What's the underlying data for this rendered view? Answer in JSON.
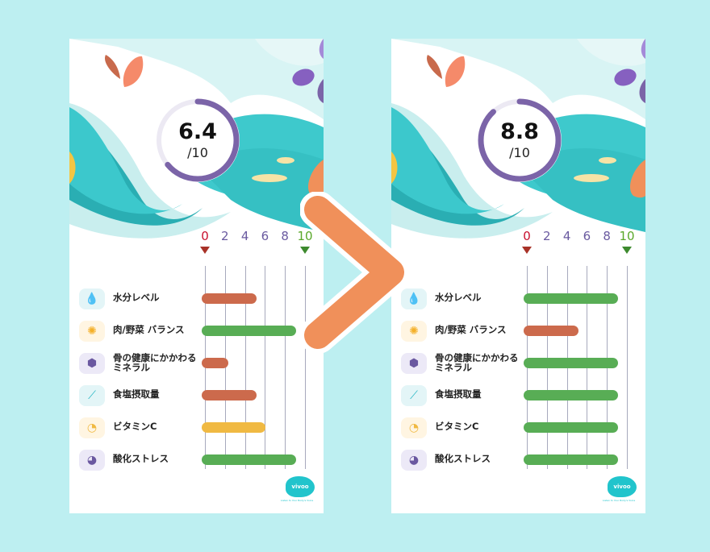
{
  "axis": {
    "ticks": [
      "0",
      "2",
      "4",
      "6",
      "8",
      "10"
    ],
    "min_color": "#c8102e",
    "max_color": "#5aa82a"
  },
  "colors": {
    "bad": "#cc6a4c",
    "good": "#58ad55",
    "medium": "#f0b942",
    "ring": "#7b64a8",
    "accent_arrow": "#f0905a"
  },
  "categories": [
    {
      "label": "水分レベル",
      "icon": "water-drop-icon"
    },
    {
      "label": "肉/野菜 バランス",
      "icon": "orange-slice-icon"
    },
    {
      "label": "骨の健康にかかわる\nミネラル",
      "icon": "mineral-molecule-icon"
    },
    {
      "label": "食塩摂取量",
      "icon": "salt-shaker-icon"
    },
    {
      "label": "ビタミンC",
      "icon": "lemon-slice-icon"
    },
    {
      "label": "酸化ストレス",
      "icon": "clock-stress-icon"
    }
  ],
  "before": {
    "score": "6.4",
    "denominator": "/10",
    "score_value": 6.4,
    "bars": [
      {
        "value": 4.8,
        "status": "bad"
      },
      {
        "value": 8.8,
        "status": "good"
      },
      {
        "value": 2.0,
        "status": "bad"
      },
      {
        "value": 4.8,
        "status": "bad"
      },
      {
        "value": 5.7,
        "status": "medium"
      },
      {
        "value": 8.8,
        "status": "good"
      }
    ]
  },
  "after": {
    "score": "8.8",
    "denominator": "/10",
    "score_value": 8.8,
    "bars": [
      {
        "value": 8.8,
        "status": "good"
      },
      {
        "value": 4.8,
        "status": "bad"
      },
      {
        "value": 8.8,
        "status": "good"
      },
      {
        "value": 8.8,
        "status": "good"
      },
      {
        "value": 8.8,
        "status": "good"
      },
      {
        "value": 8.8,
        "status": "good"
      }
    ]
  },
  "logo": {
    "text": "vivoo",
    "tagline": "Listen to Your Body's Voice"
  }
}
